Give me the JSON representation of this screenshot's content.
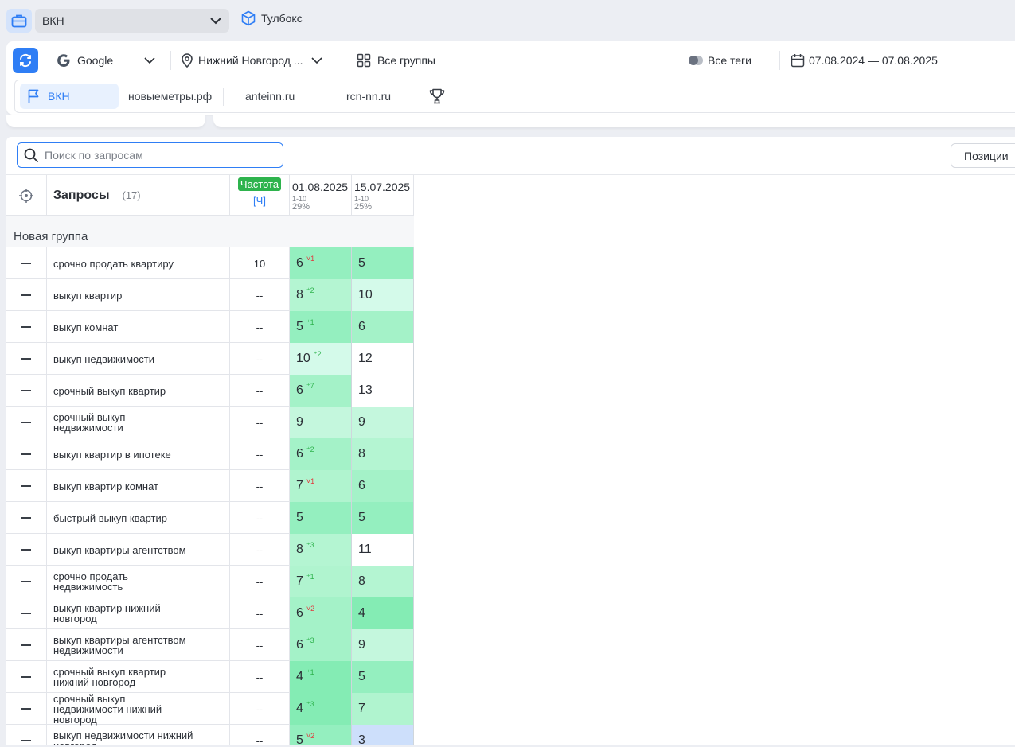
{
  "topbar": {
    "project": "ВКН",
    "toolbox_label": "Тулбокс"
  },
  "filters": {
    "engine": "Google",
    "region": "Нижний Новгород ...",
    "groups": "Все группы",
    "tags": "Все теги",
    "date_range": "07.08.2024 — 07.08.2025"
  },
  "sites": [
    "ВКН",
    "новыеметры.рф",
    "anteinn.ru",
    "rcn-nn.ru"
  ],
  "search": {
    "placeholder": "Поиск по запросам",
    "value": ""
  },
  "positions_button": "Позиции",
  "table": {
    "queries_label": "Запросы",
    "queries_count": "(17)",
    "freq_badge": "Частота",
    "freq_sub": "[Ч]",
    "dates": [
      {
        "date": "01.08.2025",
        "range": "1-10",
        "pct": "29%"
      },
      {
        "date": "15.07.2025",
        "range": "1-10",
        "pct": "25%"
      }
    ],
    "group_name": "Новая группа",
    "rows": [
      {
        "query": "срочно продать квартиру",
        "freq": "10",
        "p1": "6",
        "d1": "1",
        "dir": "dn",
        "p2": "5",
        "bg1": "#94efbf",
        "bg2": "#94efbf"
      },
      {
        "query": "выкуп квартир",
        "freq": "--",
        "p1": "8",
        "d1": "2",
        "dir": "up",
        "p2": "10",
        "bg1": "#b4f5d2",
        "bg2": "#d4faea"
      },
      {
        "query": "выкуп комнат",
        "freq": "--",
        "p1": "5",
        "d1": "1",
        "dir": "up",
        "p2": "6",
        "bg1": "#94efbf",
        "bg2": "#a4f2c8"
      },
      {
        "query": "выкуп недвижимости",
        "freq": "--",
        "p1": "10",
        "d1": "2",
        "dir": "up",
        "p2": "12",
        "bg1": "#d4faea",
        "bg2": "#ffffff"
      },
      {
        "query": "срочный выкуп квартир",
        "freq": "--",
        "p1": "6",
        "d1": "7",
        "dir": "up",
        "p2": "13",
        "bg1": "#a4f2c8",
        "bg2": "#ffffff"
      },
      {
        "query": "срочный выкуп недвижимости",
        "freq": "--",
        "p1": "9",
        "d1": "",
        "dir": "up",
        "p2": "9",
        "bg1": "#c4f7dd",
        "bg2": "#c4f7dd"
      },
      {
        "query": "выкуп квартир в ипотеке",
        "freq": "--",
        "p1": "6",
        "d1": "2",
        "dir": "up",
        "p2": "8",
        "bg1": "#a4f2c8",
        "bg2": "#b4f5d2"
      },
      {
        "query": "выкуп квартир комнат",
        "freq": "--",
        "p1": "7",
        "d1": "1",
        "dir": "dn",
        "p2": "6",
        "bg1": "#b0f4cf",
        "bg2": "#a4f2c8"
      },
      {
        "query": "быстрый выкуп квартир",
        "freq": "--",
        "p1": "5",
        "d1": "",
        "dir": "up",
        "p2": "5",
        "bg1": "#94efbf",
        "bg2": "#94efbf"
      },
      {
        "query": "выкуп квартиры агентством",
        "freq": "--",
        "p1": "8",
        "d1": "3",
        "dir": "up",
        "p2": "11",
        "bg1": "#b4f5d2",
        "bg2": "#ffffff"
      },
      {
        "query": "срочно продать недвижимость",
        "freq": "--",
        "p1": "7",
        "d1": "1",
        "dir": "up",
        "p2": "8",
        "bg1": "#b0f4cf",
        "bg2": "#b4f5d2"
      },
      {
        "query": "выкуп квартир нижний новгород",
        "freq": "--",
        "p1": "6",
        "d1": "2",
        "dir": "dn",
        "p2": "4",
        "bg1": "#a4f2c8",
        "bg2": "#84ecb4"
      },
      {
        "query": "выкуп квартиры агентством недвижимости",
        "freq": "--",
        "p1": "6",
        "d1": "3",
        "dir": "up",
        "p2": "9",
        "bg1": "#a4f2c8",
        "bg2": "#c4f7dd"
      },
      {
        "query": "срочный выкуп квартир нижний новгород",
        "freq": "--",
        "p1": "4",
        "d1": "1",
        "dir": "up",
        "p2": "5",
        "bg1": "#84ecb4",
        "bg2": "#94efbf"
      },
      {
        "query": "срочный выкуп недвижимости нижний новгород",
        "freq": "--",
        "p1": "4",
        "d1": "3",
        "dir": "up",
        "p2": "7",
        "bg1": "#84ecb4",
        "bg2": "#b0f4cf"
      },
      {
        "query": "выкуп недвижимости нижний новгород",
        "freq": "--",
        "p1": "5",
        "d1": "2",
        "dir": "dn",
        "p2": "3",
        "bg1": "#94efbf",
        "bg2": "#cddffb"
      }
    ]
  },
  "colors": {
    "accent": "#2f7ef5",
    "freq_badge": "#2eb34d"
  },
  "icons": {
    "case": "briefcase-icon",
    "toolbox": "cube-icon",
    "refresh": "refresh-icon",
    "google": "google-icon",
    "location": "map-pin-icon",
    "groups": "grid-icon",
    "tags": "toggle-icon",
    "calendar": "calendar-icon",
    "flag": "flag-icon",
    "trophy": "trophy-icon",
    "search": "search-icon",
    "target": "crosshair-icon"
  }
}
